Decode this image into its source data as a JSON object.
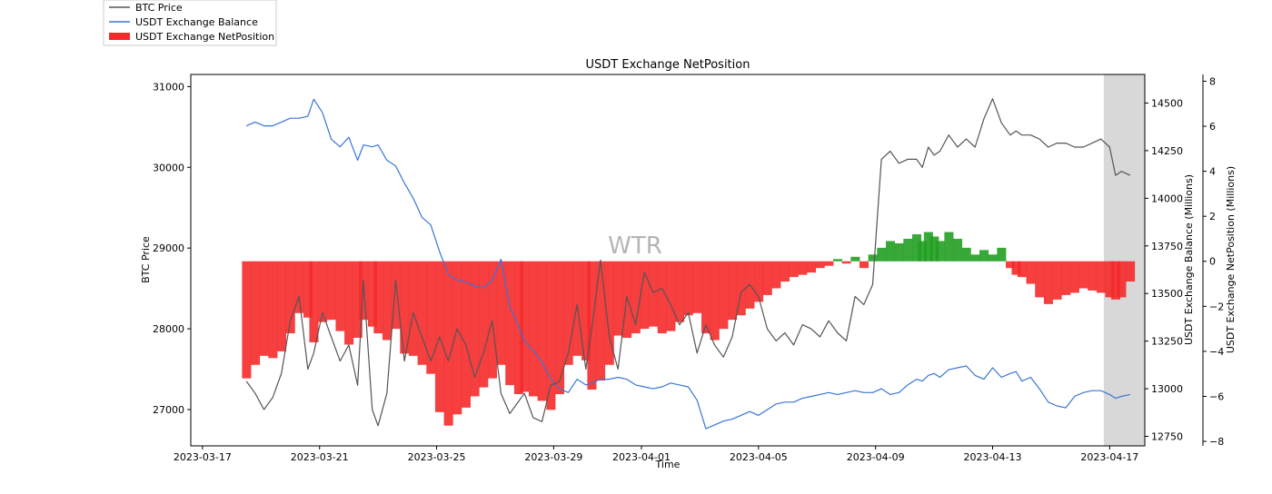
{
  "chart_data": {
    "type": "line",
    "title": "USDT Exchange NetPosition",
    "xlabel": "Time",
    "watermark": "WTR",
    "x_ticks": [
      "2023-03-17",
      "2023-03-21",
      "2023-03-25",
      "2023-03-29",
      "2023-04-01",
      "2023-04-05",
      "2023-04-09",
      "2023-04-13",
      "2023-04-17"
    ],
    "x_tick_days": [
      0,
      4,
      8,
      12,
      15,
      19,
      23,
      27,
      31
    ],
    "x_range_days": [
      -0.4,
      32.2
    ],
    "highlight_days": [
      30.8,
      32.2
    ],
    "axes": {
      "price": {
        "label": "BTC Price",
        "ylim": [
          26550,
          31150
        ],
        "ticks": [
          27000,
          28000,
          29000,
          30000,
          31000
        ]
      },
      "balance": {
        "label": "USDT Exchange Balance (Millions)",
        "ylim": [
          12700,
          14650
        ],
        "ticks": [
          12750,
          13000,
          13250,
          13500,
          13750,
          14000,
          14250,
          14500
        ]
      },
      "netpos": {
        "label": "USDT Exchange NetPosition (Millions)",
        "ylim": [
          -8.2,
          8.3
        ],
        "ticks": [
          -8,
          -6,
          -4,
          -2,
          0,
          2,
          4,
          6,
          8
        ],
        "tick_labels": [
          "−8",
          "−6",
          "−4",
          "−2",
          "0",
          "2",
          "4",
          "6",
          "8"
        ]
      }
    },
    "legend": {
      "position": "top-left",
      "entries": [
        {
          "label": "BTC Price",
          "kind": "line",
          "color": "#555555"
        },
        {
          "label": "USDT Exchange Balance",
          "kind": "line",
          "color": "#3a75d6"
        },
        {
          "label": "USDT Exchange NetPosition",
          "kind": "patch",
          "color": "#f52a2a"
        }
      ]
    },
    "colors": {
      "price": "#555555",
      "balance": "#3a75d6",
      "neg": "#f52a2a",
      "pos": "#22a022",
      "highlight": "#b8b8b8"
    },
    "series": [
      {
        "name": "BTC Price",
        "axis": "price",
        "x": [
          1.5,
          1.8,
          2.1,
          2.4,
          2.7,
          3.0,
          3.3,
          3.6,
          3.8,
          4.1,
          4.4,
          4.7,
          5.0,
          5.3,
          5.5,
          5.8,
          6.0,
          6.3,
          6.6,
          6.9,
          7.2,
          7.5,
          7.8,
          8.1,
          8.4,
          8.7,
          9.0,
          9.3,
          9.6,
          9.9,
          10.2,
          10.5,
          10.8,
          11.0,
          11.3,
          11.6,
          11.9,
          12.2,
          12.5,
          12.8,
          13.1,
          13.3,
          13.6,
          13.9,
          14.2,
          14.5,
          14.8,
          15.1,
          15.4,
          15.7,
          16.0,
          16.3,
          16.6,
          16.9,
          17.2,
          17.5,
          17.8,
          18.1,
          18.4,
          18.7,
          19.0,
          19.3,
          19.6,
          19.9,
          20.2,
          20.5,
          20.8,
          21.1,
          21.4,
          21.7,
          22.0,
          22.3,
          22.6,
          22.9,
          23.2,
          23.5,
          23.8,
          24.1,
          24.4,
          24.6,
          24.8,
          25.0,
          25.2,
          25.5,
          25.8,
          26.1,
          26.4,
          26.7,
          27.0,
          27.3,
          27.6,
          27.8,
          28.0,
          28.3,
          28.6,
          28.9,
          29.2,
          29.5,
          29.8,
          30.1,
          30.4,
          30.7,
          31.0,
          31.2,
          31.4,
          31.7
        ],
        "values": [
          27350,
          27200,
          27000,
          27150,
          27450,
          28100,
          28400,
          27500,
          27700,
          28200,
          27900,
          27600,
          27800,
          27300,
          28600,
          27000,
          26800,
          27200,
          28600,
          27600,
          28200,
          27900,
          27600,
          27900,
          27600,
          28000,
          27800,
          27400,
          27700,
          28100,
          27200,
          26950,
          27100,
          27200,
          26900,
          26850,
          27300,
          27350,
          27700,
          28300,
          27500,
          28000,
          28850,
          27900,
          27500,
          28400,
          28050,
          28700,
          28450,
          28500,
          28300,
          28050,
          28200,
          27700,
          28050,
          27800,
          27650,
          27900,
          28450,
          28550,
          28400,
          28000,
          27850,
          27950,
          27800,
          28050,
          28000,
          27900,
          28100,
          27950,
          27850,
          28400,
          28300,
          28550,
          30100,
          30200,
          30050,
          30100,
          30100,
          30000,
          30250,
          30150,
          30200,
          30400,
          30250,
          30350,
          30250,
          30600,
          30850,
          30550,
          30400,
          30450,
          30400,
          30400,
          30350,
          30250,
          30300,
          30300,
          30250,
          30250,
          30300,
          30350,
          30250,
          29900,
          29950,
          29900
        ]
      },
      {
        "name": "USDT Exchange Balance",
        "axis": "balance",
        "x": [
          1.5,
          1.8,
          2.1,
          2.4,
          2.7,
          3.0,
          3.3,
          3.6,
          3.8,
          4.1,
          4.4,
          4.7,
          5.0,
          5.3,
          5.5,
          5.8,
          6.0,
          6.3,
          6.6,
          6.9,
          7.2,
          7.5,
          7.8,
          8.1,
          8.4,
          8.7,
          9.0,
          9.3,
          9.6,
          9.9,
          10.2,
          10.5,
          10.8,
          11.0,
          11.3,
          11.6,
          11.9,
          12.2,
          12.5,
          12.8,
          13.1,
          13.3,
          13.6,
          13.9,
          14.2,
          14.5,
          14.8,
          15.1,
          15.4,
          15.7,
          16.0,
          16.3,
          16.6,
          16.9,
          17.2,
          17.5,
          17.8,
          18.1,
          18.4,
          18.7,
          19.0,
          19.3,
          19.6,
          19.9,
          20.2,
          20.5,
          20.8,
          21.1,
          21.4,
          21.7,
          22.0,
          22.3,
          22.6,
          22.9,
          23.2,
          23.5,
          23.8,
          24.1,
          24.4,
          24.6,
          24.8,
          25.0,
          25.2,
          25.5,
          25.8,
          26.1,
          26.4,
          26.7,
          27.0,
          27.3,
          27.6,
          27.8,
          28.0,
          28.3,
          28.6,
          28.9,
          29.2,
          29.5,
          29.8,
          30.1,
          30.4,
          30.7,
          31.0,
          31.2,
          31.4,
          31.7
        ],
        "values": [
          14380,
          14400,
          14380,
          14380,
          14400,
          14420,
          14420,
          14430,
          14520,
          14450,
          14310,
          14270,
          14320,
          14200,
          14280,
          14270,
          14280,
          14200,
          14170,
          14080,
          14000,
          13900,
          13860,
          13720,
          13600,
          13570,
          13560,
          13540,
          13530,
          13570,
          13680,
          13430,
          13330,
          13250,
          13200,
          13140,
          13050,
          13000,
          12980,
          13050,
          13020,
          13030,
          13050,
          13050,
          13060,
          13050,
          13020,
          13010,
          13000,
          13010,
          13030,
          13020,
          13010,
          12940,
          12790,
          12810,
          12830,
          12840,
          12860,
          12880,
          12860,
          12890,
          12920,
          12930,
          12930,
          12950,
          12960,
          12970,
          12980,
          12970,
          12980,
          12990,
          12980,
          12980,
          13000,
          12970,
          12980,
          13020,
          13050,
          13040,
          13070,
          13080,
          13060,
          13100,
          13110,
          13120,
          13070,
          13050,
          13110,
          13060,
          13080,
          13090,
          13040,
          13060,
          13000,
          12930,
          12910,
          12900,
          12960,
          12980,
          12990,
          12990,
          12970,
          12950,
          12960,
          12970
        ]
      },
      {
        "name": "USDT Exchange NetPosition",
        "axis": "netpos",
        "x": [
          1.5,
          1.8,
          2.1,
          2.4,
          2.7,
          3.0,
          3.3,
          3.6,
          3.8,
          4.1,
          4.4,
          4.7,
          5.0,
          5.3,
          5.5,
          5.8,
          6.0,
          6.3,
          6.6,
          6.9,
          7.2,
          7.5,
          7.8,
          8.1,
          8.4,
          8.7,
          9.0,
          9.3,
          9.6,
          9.9,
          10.2,
          10.5,
          10.8,
          11.0,
          11.3,
          11.6,
          11.9,
          12.2,
          12.5,
          12.8,
          13.1,
          13.3,
          13.6,
          13.9,
          14.2,
          14.5,
          14.8,
          15.1,
          15.4,
          15.7,
          16.0,
          16.3,
          16.6,
          16.9,
          17.2,
          17.5,
          17.8,
          18.1,
          18.4,
          18.7,
          19.0,
          19.3,
          19.6,
          19.9,
          20.2,
          20.5,
          20.8,
          21.1,
          21.4,
          21.7,
          22.0,
          22.3,
          22.6,
          22.9,
          23.2,
          23.5,
          23.8,
          24.1,
          24.4,
          24.6,
          24.8,
          25.0,
          25.2,
          25.5,
          25.8,
          26.1,
          26.4,
          26.7,
          27.0,
          27.3,
          27.6,
          27.8,
          28.0,
          28.3,
          28.6,
          28.9,
          29.2,
          29.5,
          29.8,
          30.1,
          30.4,
          30.7,
          31.0,
          31.2,
          31.4,
          31.7
        ],
        "values": [
          -5.2,
          -4.6,
          -4.2,
          -4.3,
          -4.0,
          -3.2,
          -2.3,
          -2.5,
          -3.6,
          -2.7,
          -2.6,
          -3.1,
          -3.7,
          -3.4,
          -2.6,
          -2.9,
          -3.2,
          -3.5,
          -3.0,
          -4.1,
          -4.2,
          -4.6,
          -5.0,
          -6.7,
          -7.3,
          -6.8,
          -6.5,
          -6.0,
          -5.6,
          -5.2,
          -4.6,
          -5.5,
          -5.9,
          -5.8,
          -6.0,
          -6.2,
          -6.6,
          -5.9,
          -4.6,
          -4.2,
          -4.4,
          -5.7,
          -5.3,
          -4.6,
          -3.3,
          -3.4,
          -3.2,
          -3.0,
          -2.9,
          -3.2,
          -3.1,
          -2.7,
          -2.4,
          -2.3,
          -3.2,
          -3.5,
          -3.0,
          -2.6,
          -2.4,
          -2.1,
          -1.8,
          -1.5,
          -1.2,
          -0.9,
          -0.7,
          -0.6,
          -0.5,
          -0.3,
          -0.2,
          0.1,
          -0.1,
          0.2,
          -0.3,
          0.3,
          0.6,
          0.9,
          0.8,
          1.0,
          1.2,
          0.9,
          1.3,
          1.1,
          0.9,
          1.3,
          1.0,
          0.6,
          0.3,
          0.5,
          0.3,
          0.6,
          -0.3,
          -0.6,
          -0.7,
          -1.0,
          -1.6,
          -1.9,
          -1.7,
          -1.5,
          -1.4,
          -1.2,
          -1.3,
          -1.4,
          -1.6,
          -1.7,
          -1.6,
          -0.9
        ]
      }
    ]
  }
}
